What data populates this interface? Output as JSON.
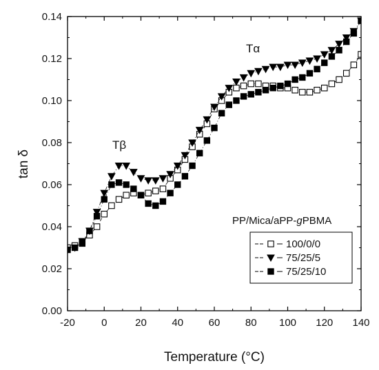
{
  "chart_data": {
    "type": "scatter",
    "xlabel": "Temperature (°C)",
    "ylabel": "tan δ",
    "xlim": [
      -20,
      140
    ],
    "ylim": [
      0.0,
      0.14
    ],
    "xticks": [
      "-20",
      "0",
      "20",
      "40",
      "60",
      "80",
      "100",
      "120",
      "140"
    ],
    "yticks": [
      "0.00",
      "0.02",
      "0.04",
      "0.06",
      "0.08",
      "0.10",
      "0.12",
      "0.14"
    ],
    "grid": false,
    "legend_title": "PP/Mica/aPP-",
    "legend_title_italic": "g",
    "legend_title_suffix": "PBMA",
    "legend_placement": "bottom-right",
    "annotations": [
      {
        "text": "Tβ",
        "x": 7,
        "y": 0.079
      },
      {
        "text": "Tα",
        "x": 74,
        "y": 0.125
      }
    ],
    "series": [
      {
        "name": "100/0/0",
        "marker": "open-square",
        "x": [
          -20,
          -16,
          -12,
          -8,
          -4,
          0,
          4,
          8,
          12,
          16,
          20,
          24,
          28,
          32,
          36,
          40,
          44,
          48,
          52,
          56,
          60,
          64,
          68,
          72,
          76,
          80,
          84,
          88,
          92,
          96,
          100,
          104,
          108,
          112,
          116,
          120,
          124,
          128,
          132,
          136,
          140
        ],
        "y": [
          0.03,
          0.031,
          0.033,
          0.036,
          0.04,
          0.046,
          0.05,
          0.053,
          0.055,
          0.056,
          0.055,
          0.056,
          0.057,
          0.058,
          0.063,
          0.067,
          0.072,
          0.078,
          0.084,
          0.089,
          0.096,
          0.1,
          0.104,
          0.106,
          0.107,
          0.108,
          0.108,
          0.107,
          0.107,
          0.106,
          0.106,
          0.105,
          0.104,
          0.104,
          0.105,
          0.106,
          0.108,
          0.11,
          0.113,
          0.117,
          0.122
        ]
      },
      {
        "name": "75/25/5",
        "marker": "filled-triangle",
        "x": [
          -20,
          -16,
          -12,
          -8,
          -4,
          0,
          4,
          8,
          12,
          16,
          20,
          24,
          28,
          32,
          36,
          40,
          44,
          48,
          52,
          56,
          60,
          64,
          68,
          72,
          76,
          80,
          84,
          88,
          92,
          96,
          100,
          104,
          108,
          112,
          116,
          120,
          124,
          128,
          132,
          136,
          140
        ],
        "y": [
          0.029,
          0.03,
          0.033,
          0.038,
          0.047,
          0.056,
          0.064,
          0.069,
          0.069,
          0.066,
          0.063,
          0.062,
          0.062,
          0.063,
          0.065,
          0.069,
          0.074,
          0.08,
          0.086,
          0.091,
          0.097,
          0.102,
          0.106,
          0.109,
          0.111,
          0.113,
          0.114,
          0.115,
          0.116,
          0.116,
          0.117,
          0.117,
          0.118,
          0.119,
          0.12,
          0.122,
          0.124,
          0.127,
          0.13,
          0.133,
          0.138
        ]
      },
      {
        "name": "75/25/10",
        "marker": "filled-square",
        "x": [
          -20,
          -16,
          -12,
          -8,
          -4,
          0,
          4,
          8,
          12,
          16,
          20,
          24,
          28,
          32,
          36,
          40,
          44,
          48,
          52,
          56,
          60,
          64,
          68,
          72,
          76,
          80,
          84,
          88,
          92,
          96,
          100,
          104,
          108,
          112,
          116,
          120,
          124,
          128,
          132,
          136,
          140
        ],
        "y": [
          0.029,
          0.03,
          0.032,
          0.038,
          0.045,
          0.053,
          0.06,
          0.061,
          0.06,
          0.058,
          0.055,
          0.051,
          0.05,
          0.052,
          0.056,
          0.06,
          0.064,
          0.069,
          0.075,
          0.081,
          0.087,
          0.094,
          0.098,
          0.1,
          0.102,
          0.103,
          0.104,
          0.105,
          0.106,
          0.107,
          0.108,
          0.11,
          0.111,
          0.113,
          0.115,
          0.118,
          0.121,
          0.124,
          0.128,
          0.132,
          0.138
        ]
      }
    ]
  }
}
